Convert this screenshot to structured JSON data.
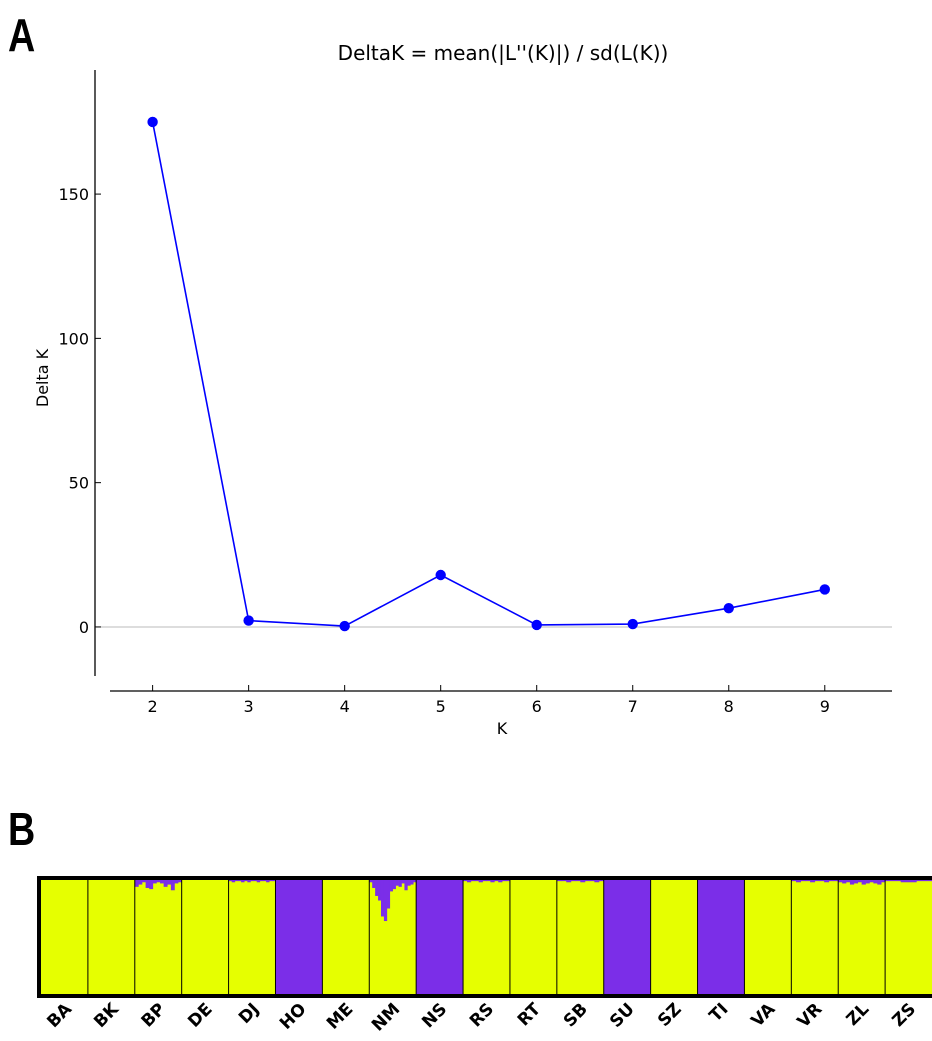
{
  "panels": {
    "a": "A",
    "b": "B"
  },
  "chart_data": [
    {
      "type": "line",
      "title": "DeltaK = mean(|L''(K)|) / sd(L(K))",
      "xlabel": "K",
      "ylabel": "Delta K",
      "x": [
        2,
        3,
        4,
        5,
        6,
        7,
        8,
        9
      ],
      "series": [
        {
          "values": [
            175,
            2.2,
            0.3,
            18,
            0.7,
            1.0,
            6.5,
            13
          ]
        }
      ],
      "xlim": [
        1.4,
        9.7
      ],
      "ylim": [
        -17,
        193
      ],
      "xticks": [
        2,
        3,
        4,
        5,
        6,
        7,
        8,
        9
      ],
      "yticks": [
        0,
        50,
        100,
        150
      ],
      "zero_line": true,
      "grid": false,
      "colors": {
        "line": "#0000ff",
        "marker": "#0000ff",
        "zero_line": "#bbbbbb"
      }
    },
    {
      "type": "bar",
      "stacked": true,
      "normalized": true,
      "categories": [
        "BA",
        "BK",
        "BP",
        "DE",
        "DJ",
        "HO",
        "ME",
        "NM",
        "NS",
        "RS",
        "RT",
        "SB",
        "SU",
        "SZ",
        "TI",
        "VA",
        "VR",
        "ZL",
        "ZS"
      ],
      "series_colors": {
        "cluster_1": "#e6ff00",
        "cluster_2": "#7b2ee8"
      },
      "cluster_2_proportion_by_individual": {
        "BA": [
          0
        ],
        "BK": [
          0
        ],
        "BP": [
          0.06,
          0.04,
          0.02,
          0.07,
          0.08,
          0.03,
          0.02,
          0.03,
          0.06,
          0.04,
          0.09,
          0.03,
          0.02
        ],
        "DE": [
          0
        ],
        "DJ": [
          0.01,
          0.02,
          0.01,
          0.01,
          0.02,
          0.01,
          0.02,
          0.01,
          0.01,
          0.02,
          0.01,
          0.01,
          0.02,
          0.01,
          0.01
        ],
        "HO": [
          1
        ],
        "ME": [
          0
        ],
        "NM": [
          0.02,
          0.07,
          0.14,
          0.18,
          0.32,
          0.36,
          0.25,
          0.1,
          0.08,
          0.05,
          0.06,
          0.03,
          0.09,
          0.05,
          0.04,
          0.02
        ],
        "NS": [
          1
        ],
        "RS": [
          0.01,
          0.02,
          0.01,
          0.01,
          0.02,
          0.01,
          0.01,
          0.02,
          0.01,
          0.02,
          0.01,
          0.01
        ],
        "RT": [
          0
        ],
        "SB": [
          0.01,
          0.01,
          0.02,
          0.01,
          0.01,
          0.02,
          0.01,
          0.01,
          0.02,
          0.01
        ],
        "SU": [
          1
        ],
        "SZ": [
          0
        ],
        "TI": [
          1
        ],
        "VA": [
          0
        ],
        "VR": [
          0.01,
          0.02,
          0.01,
          0.01,
          0.02,
          0.01,
          0.01,
          0.02,
          0.01,
          0.01
        ],
        "ZL": [
          0.02,
          0.03,
          0.02,
          0.04,
          0.03,
          0.02,
          0.04,
          0.03,
          0.02,
          0.03,
          0.04,
          0.02
        ],
        "ZS": [
          0.01,
          0.02,
          0.01
        ]
      }
    }
  ]
}
